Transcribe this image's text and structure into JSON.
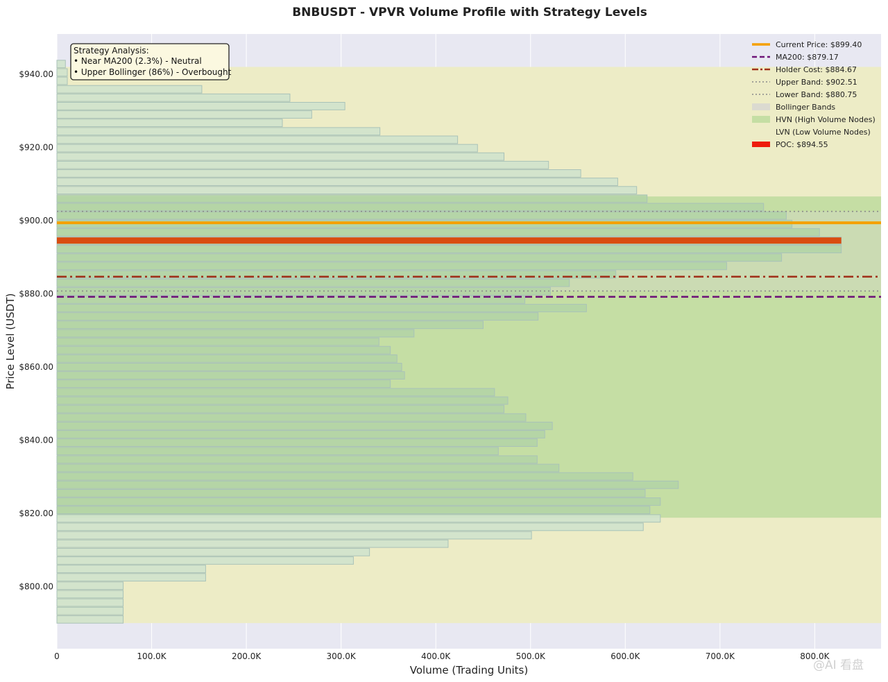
{
  "chart_data": {
    "type": "bar",
    "orientation": "horizontal",
    "title": "BNBUSDT - VPVR Volume Profile with Strategy Levels",
    "xlabel": "Volume (Trading Units)",
    "ylabel": "Price Level (USDT)",
    "xlim": [
      0,
      870000
    ],
    "ylim": [
      783,
      951
    ],
    "x_ticks": [
      0,
      100000,
      200000,
      300000,
      400000,
      500000,
      600000,
      700000,
      800000
    ],
    "x_tick_labels": [
      "0",
      "100.0K",
      "200.0K",
      "300.0K",
      "400.0K",
      "500.0K",
      "600.0K",
      "700.0K",
      "800.0K"
    ],
    "y_ticks": [
      800,
      820,
      840,
      860,
      880,
      900,
      920,
      940
    ],
    "y_tick_labels": [
      "$800.00",
      "$820.00",
      "$840.00",
      "$860.00",
      "$880.00",
      "$900.00",
      "$920.00",
      "$940.00"
    ],
    "grid": true,
    "bin_height": 2.05,
    "price_levels": [
      791.0,
      793.3,
      795.6,
      797.9,
      800.2,
      802.5,
      804.8,
      807.1,
      809.4,
      811.7,
      814.0,
      816.3,
      818.6,
      820.9,
      823.2,
      825.5,
      827.8,
      830.1,
      832.4,
      834.7,
      837.0,
      839.3,
      841.6,
      843.9,
      846.2,
      848.5,
      850.8,
      853.1,
      855.4,
      857.7,
      860.0,
      862.3,
      864.6,
      866.9,
      869.2,
      871.5,
      873.8,
      876.1,
      878.4,
      880.7,
      883.0,
      885.3,
      887.6,
      889.9,
      892.2,
      894.5,
      896.8,
      899.1,
      901.4,
      903.7,
      906.0,
      908.3,
      910.6,
      912.9,
      915.2,
      917.5,
      919.8,
      922.1,
      924.4,
      926.7,
      929.0,
      931.3,
      933.6,
      935.9,
      938.2,
      940.5,
      942.8
    ],
    "volumes": [
      70000,
      70000,
      70000,
      70000,
      70000,
      157000,
      157000,
      313000,
      330000,
      413000,
      501000,
      619000,
      637000,
      626000,
      637000,
      621000,
      656000,
      608000,
      530000,
      507000,
      466000,
      507000,
      515000,
      523000,
      495000,
      472000,
      476000,
      462000,
      352000,
      367000,
      364000,
      359000,
      352000,
      340000,
      377000,
      450000,
      508000,
      559000,
      494000,
      521000,
      541000,
      590000,
      707000,
      765000,
      828000,
      828000,
      805000,
      776000,
      770000,
      746000,
      623000,
      612000,
      592000,
      553000,
      519000,
      472000,
      444000,
      423000,
      341000,
      238000,
      269000,
      304000,
      246000,
      153000,
      11000,
      11000,
      9000
    ],
    "series": [
      {
        "name": "Current Price: $899.40",
        "value": 899.4,
        "color": "#f5a000",
        "style": "solid"
      },
      {
        "name": "MA200: $879.17",
        "value": 879.17,
        "color": "#6e1477",
        "style": "dashed"
      },
      {
        "name": "Holder Cost: $884.67",
        "value": 884.67,
        "color": "#a0311a",
        "style": "dashdot"
      },
      {
        "name": "Upper Band: $902.51",
        "value": 902.51,
        "color": "#8a8a8a",
        "style": "dotted"
      },
      {
        "name": "Lower Band: $880.75",
        "value": 880.75,
        "color": "#8a8a8a",
        "style": "dotted"
      },
      {
        "name": "Bollinger Bands",
        "range": [
          880.75,
          902.51
        ],
        "color": "#d8d8d0",
        "style": "band"
      },
      {
        "name": "HVN (High Volume Nodes)",
        "range": [
          818.8,
          906.6
        ],
        "color": "#c5dea4",
        "style": "band"
      },
      {
        "name": "LVN (Low Volume Nodes)",
        "range": [
          790.0,
          942.0
        ],
        "color": "#edecc6",
        "style": "band"
      },
      {
        "name": "POC: $894.55",
        "value": 894.55,
        "color": "#d94c10",
        "style": "poc"
      }
    ],
    "legend_position": "top-right",
    "annotation": {
      "lines": [
        "Strategy Analysis:",
        "• Near MA200 (2.3%) - Neutral",
        "• Upper Bollinger (86%) - Overbought"
      ]
    }
  },
  "watermark": "@AI 看盘"
}
